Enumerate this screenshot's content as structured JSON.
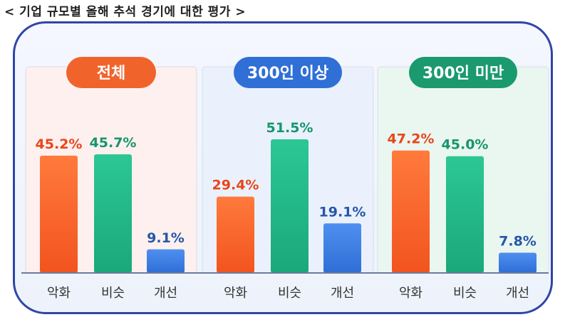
{
  "title": "< 기업 규모별 올해 추석 경기에 대한 평가 >",
  "colors": {
    "worse": "#f2541f",
    "similar": "#1aa87a",
    "better": "#2f6fd6",
    "worse_text": "#e8461a",
    "similar_text": "#15966c",
    "better_text": "#2556a8"
  },
  "chart_data": {
    "type": "bar",
    "categories": [
      "악화",
      "비슷",
      "개선"
    ],
    "ylim": [
      0,
      60
    ],
    "groups": [
      {
        "name": "전체",
        "values": [
          45.2,
          45.7,
          9.1
        ],
        "labels": [
          "45.2%",
          "45.7%",
          "9.1%"
        ],
        "pill_color": "#f0642c",
        "panel_tint": "#fdf0ee"
      },
      {
        "name": "300인 이상",
        "values": [
          29.4,
          51.5,
          19.1
        ],
        "labels": [
          "29.4%",
          "51.5%",
          "19.1%"
        ],
        "pill_color": "#2f6fd6",
        "panel_tint": "#eaf1fc"
      },
      {
        "name": "300인 미만",
        "values": [
          47.2,
          45.0,
          7.8
        ],
        "labels": [
          "47.2%",
          "45.0%",
          "7.8%"
        ],
        "pill_color": "#1a9a6e",
        "panel_tint": "#eaf6f0"
      }
    ]
  }
}
